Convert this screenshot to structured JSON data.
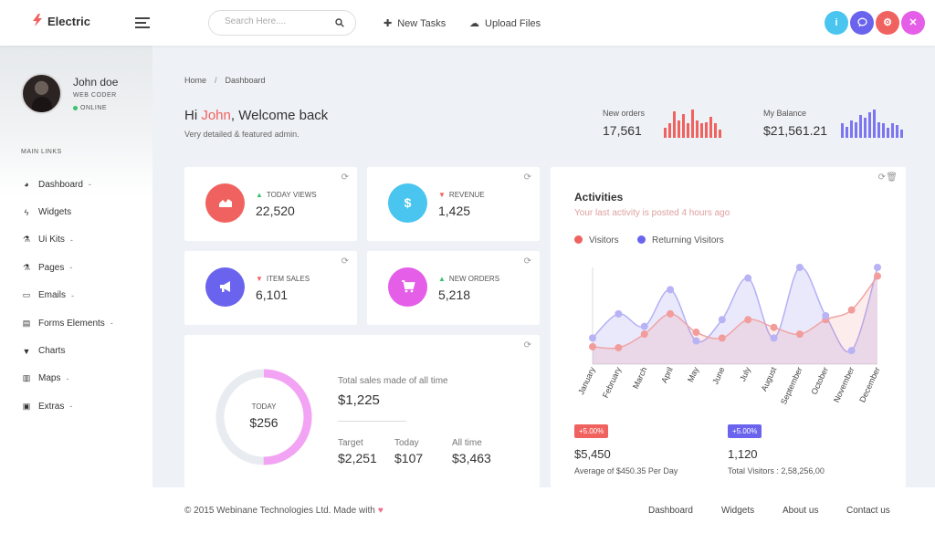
{
  "header": {
    "brand": "Electric",
    "search_placeholder": "Search Here....",
    "new_tasks": "New Tasks",
    "upload_files": "Upload Files",
    "action_buttons": [
      {
        "icon": "info-icon",
        "color": "#49c5ef"
      },
      {
        "icon": "chat-icon",
        "color": "#6a63ed"
      },
      {
        "icon": "gear-icon",
        "color": "#f0625f"
      },
      {
        "icon": "shuffle-icon",
        "color": "#e45ee8"
      }
    ]
  },
  "sidebar": {
    "user_name": "John doe",
    "user_role": "WEB CODER",
    "user_status": "ONLINE",
    "section_title": "MAIN LINKS",
    "items": [
      {
        "label": "Dashboard",
        "icon": "dashboard-icon",
        "caret": true
      },
      {
        "label": "Widgets",
        "icon": "bolt-icon",
        "caret": false
      },
      {
        "label": "Ui Kits",
        "icon": "flask-icon",
        "caret": true
      },
      {
        "label": "Pages",
        "icon": "flask-icon",
        "caret": true
      },
      {
        "label": "Emails",
        "icon": "inbox-icon",
        "caret": true
      },
      {
        "label": "Forms Elements",
        "icon": "form-icon",
        "caret": true
      },
      {
        "label": "Charts",
        "icon": "filter-icon",
        "caret": false
      },
      {
        "label": "Maps",
        "icon": "map-icon",
        "caret": true
      },
      {
        "label": "Extras",
        "icon": "gift-icon",
        "caret": true
      }
    ]
  },
  "breadcrumb": {
    "home": "Home",
    "current": "Dashboard"
  },
  "welcome": {
    "greeting_prefix": "Hi ",
    "name": "John",
    "greeting_suffix": ", Welcome back",
    "subtitle": "Very detailed & featured admin."
  },
  "kpis": {
    "new_orders": {
      "label": "New orders",
      "value": "17,561",
      "color": "#f0625f",
      "bars": [
        0.35,
        0.5,
        0.95,
        0.6,
        0.85,
        0.5,
        1.0,
        0.6,
        0.5,
        0.55,
        0.75,
        0.5,
        0.3
      ]
    },
    "balance": {
      "label": "My Balance",
      "value": "$21,561.21",
      "color": "#7c76f0",
      "bars": [
        0.5,
        0.4,
        0.6,
        0.55,
        0.8,
        0.7,
        0.9,
        1.0,
        0.55,
        0.5,
        0.35,
        0.5,
        0.45,
        0.3
      ]
    }
  },
  "stats": [
    {
      "label": "TODAY VIEWS",
      "value": "22,520",
      "trend": "up",
      "icon": "area-chart-icon",
      "color": "#f0625f"
    },
    {
      "label": "REVENUE",
      "value": "1,425",
      "trend": "down",
      "icon": "dollar-icon",
      "color": "#49c5ef"
    },
    {
      "label": "ITEM SALES",
      "value": "6,101",
      "trend": "down",
      "icon": "megaphone-icon",
      "color": "#6a63ed"
    },
    {
      "label": "NEW ORDERS",
      "value": "5,218",
      "trend": "up",
      "icon": "cart-icon",
      "color": "#e45ee8"
    }
  ],
  "sales": {
    "today_label": "TODAY",
    "today_value": "$256",
    "progress": 0.5,
    "total_label": "Total sales made of all time",
    "total_value": "$1,225",
    "target_label": "Target",
    "target_value": "$2,251",
    "today2_label": "Today",
    "today2_value": "$107",
    "alltime_label": "All time",
    "alltime_value": "$3,463"
  },
  "activities": {
    "title": "Activities",
    "subtitle": "Your last activity is posted 4 hours ago",
    "left": {
      "badge": "+5.00%",
      "badge_color": "#f0625f",
      "value": "$5,450",
      "note": "Average of $450.35 Per Day"
    },
    "right": {
      "badge": "+5.00%",
      "badge_color": "#6a63ed",
      "value": "1,120",
      "note": "Total Visitors : 2,58,256,00"
    }
  },
  "chart_data": {
    "type": "area",
    "x": [
      "January",
      "February",
      "March",
      "April",
      "May",
      "June",
      "July",
      "August",
      "September",
      "October",
      "November",
      "December"
    ],
    "ylim": [
      0,
      100
    ],
    "series": [
      {
        "name": "Visitors",
        "color": "#f0625f",
        "values": [
          18,
          17,
          31,
          52,
          33,
          27,
          46,
          38,
          31,
          46,
          56,
          91
        ]
      },
      {
        "name": "Returning Visitors",
        "color": "#6a63ed",
        "values": [
          27,
          52,
          39,
          77,
          24,
          46,
          89,
          27,
          100,
          50,
          14,
          100
        ]
      }
    ]
  },
  "footer": {
    "copyright": "© 2015 Webinane Technologies Ltd. Made with",
    "links": [
      "Dashboard",
      "Widgets",
      "About us",
      "Contact us"
    ]
  }
}
